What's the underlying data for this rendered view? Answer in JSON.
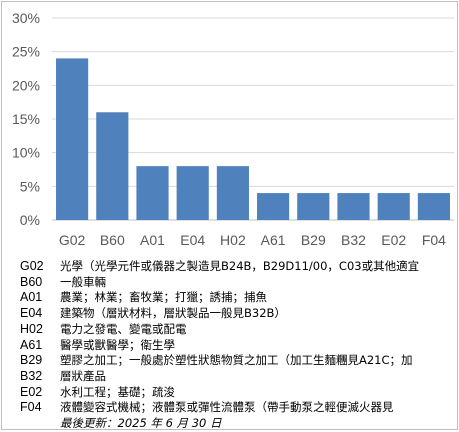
{
  "chart_data": {
    "type": "bar",
    "categories": [
      "G02",
      "B60",
      "A01",
      "E04",
      "H02",
      "A61",
      "B29",
      "B32",
      "E02",
      "F04"
    ],
    "values": [
      24,
      16,
      8,
      8,
      8,
      4,
      4,
      4,
      4,
      4
    ],
    "ylim": [
      0,
      30
    ],
    "yticks": [
      0,
      5,
      10,
      15,
      20,
      25,
      30
    ],
    "ytick_labels": [
      "0%",
      "5%",
      "10%",
      "15%",
      "20%",
      "25%",
      "30%"
    ],
    "grid": true,
    "bar_color": "#4f81bd",
    "title": "",
    "xlabel": "",
    "ylabel": ""
  },
  "legend": {
    "rows": [
      {
        "code": "G02",
        "desc": "光學（光學元件或儀器之製造見B24B，B29D11/00，C03或其他適宜"
      },
      {
        "code": "B60",
        "desc": "一般車輛"
      },
      {
        "code": "A01",
        "desc": "農業；林業；畜牧業；打獵；誘捕；捕魚"
      },
      {
        "code": "E04",
        "desc": "建築物（層狀材料，層狀製品一般見B32B）"
      },
      {
        "code": "H02",
        "desc": "電力之發電、變電或配電"
      },
      {
        "code": "A61",
        "desc": "醫學或獸醫學；衛生學"
      },
      {
        "code": "B29",
        "desc": "塑膠之加工；一般處於塑性狀態物質之加工（加工生麵糰見A21C；加"
      },
      {
        "code": "B32",
        "desc": "層狀產品"
      },
      {
        "code": "E02",
        "desc": "水利工程；基礎；疏浚"
      },
      {
        "code": "F04",
        "desc": "液體變容式機械；液體泵或彈性流體泵（帶手動泵之輕便滅火器見"
      }
    ],
    "updated": "最後更新：2025 年 6 月 30 日"
  }
}
